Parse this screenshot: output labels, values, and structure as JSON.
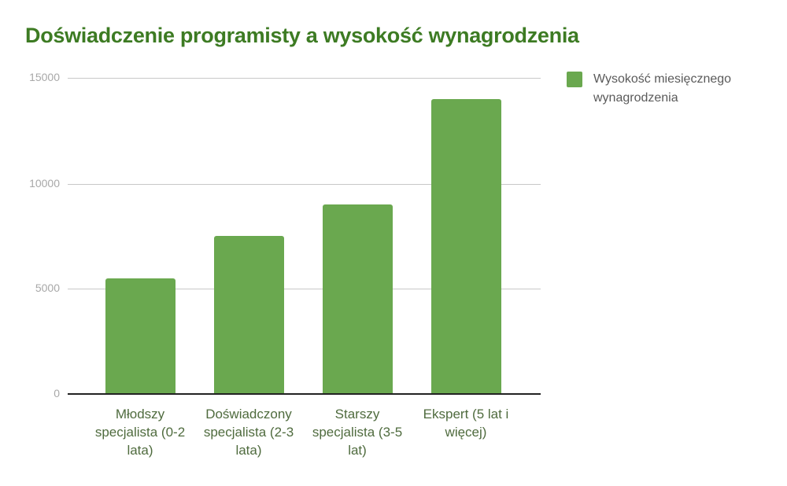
{
  "chart_data": {
    "type": "bar",
    "title": "Doświadczenie programisty a wysokość wynagrodzenia",
    "xlabel": "",
    "ylabel": "",
    "categories": [
      "Młodszy specjalista (0-2 lata)",
      "Doświadczony specjalista (2-3 lata)",
      "Starszy specjalista (3-5 lat)",
      "Ekspert (5 lat i więcej)"
    ],
    "series": [
      {
        "name": "Wysokość miesięcznego wynagrodzenia",
        "values": [
          5500,
          7500,
          9000,
          14000
        ],
        "color": "#6aa84f"
      }
    ],
    "ylim": [
      0,
      15000
    ],
    "yticks": [
      "0",
      "5000",
      "10000",
      "15000"
    ],
    "grid": true,
    "legend_position": "right"
  },
  "title": "Doświadczenie programisty a wysokość wynagrodzenia",
  "yaxis": {
    "ticks": [
      "15000",
      "10000",
      "5000",
      "0"
    ]
  },
  "xaxis": {
    "labels": [
      "Młodszy specjalista (0-2 lata)",
      "Doświadczony specjalista (2-3 lata)",
      "Starszy specjalista (3-5 lat)",
      "Ekspert (5 lat i więcej)"
    ]
  },
  "legend": {
    "label": "Wysokość miesięcznego wynagrodzenia"
  },
  "colors": {
    "bar": "#6aa84f",
    "title": "#3d7b23"
  }
}
